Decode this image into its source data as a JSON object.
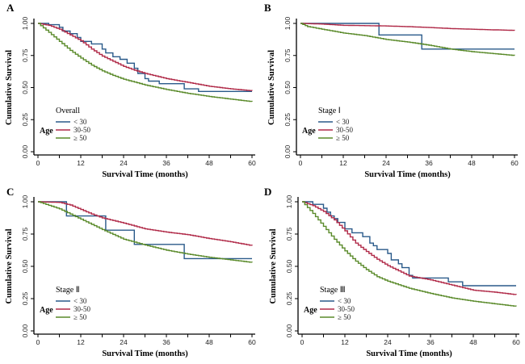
{
  "figure": {
    "colors": {
      "lt30": "#2a5a8a",
      "30_50": "#b02a48",
      "ge50": "#5a8a2a"
    }
  },
  "chart_data": [
    {
      "type": "line",
      "panel_label": "A",
      "subtitle": "Overall",
      "xlabel": "Survival Time (months)",
      "ylabel": "Cumulative Survival",
      "xlim": [
        0,
        60
      ],
      "ylim": [
        0,
        1
      ],
      "xticks": [
        "0",
        "12",
        "24",
        "36",
        "48",
        "60"
      ],
      "yticks": [
        "0.00",
        "0.25",
        "0.50",
        "0.75",
        "1.00"
      ],
      "grid": false,
      "legend": {
        "title": "Age",
        "placement": "bottom-left",
        "entries": [
          "< 30",
          "30-50",
          "≥ 50"
        ]
      },
      "series": [
        {
          "name": "< 30",
          "color_key": "lt30",
          "step": true,
          "points": [
            [
              0,
              1.0
            ],
            [
              3,
              1.0
            ],
            [
              3,
              0.99
            ],
            [
              6,
              0.99
            ],
            [
              6,
              0.97
            ],
            [
              7,
              0.97
            ],
            [
              7,
              0.94
            ],
            [
              9,
              0.94
            ],
            [
              9,
              0.92
            ],
            [
              11,
              0.92
            ],
            [
              11,
              0.89
            ],
            [
              12,
              0.89
            ],
            [
              12,
              0.86
            ],
            [
              15,
              0.86
            ],
            [
              15,
              0.84
            ],
            [
              18,
              0.84
            ],
            [
              18,
              0.8
            ],
            [
              19,
              0.8
            ],
            [
              19,
              0.77
            ],
            [
              21,
              0.77
            ],
            [
              21,
              0.74
            ],
            [
              23,
              0.74
            ],
            [
              23,
              0.72
            ],
            [
              25,
              0.72
            ],
            [
              25,
              0.69
            ],
            [
              27,
              0.69
            ],
            [
              27,
              0.65
            ],
            [
              28,
              0.65
            ],
            [
              28,
              0.61
            ],
            [
              30,
              0.61
            ],
            [
              30,
              0.57
            ],
            [
              31,
              0.57
            ],
            [
              31,
              0.55
            ],
            [
              34,
              0.55
            ],
            [
              34,
              0.53
            ],
            [
              41,
              0.53
            ],
            [
              41,
              0.49
            ],
            [
              45,
              0.49
            ],
            [
              45,
              0.47
            ],
            [
              60,
              0.47
            ]
          ]
        },
        {
          "name": "30-50",
          "color_key": "30_50",
          "step": false,
          "points": [
            [
              0,
              1.0
            ],
            [
              3,
              0.985
            ],
            [
              6,
              0.955
            ],
            [
              9,
              0.91
            ],
            [
              12,
              0.865
            ],
            [
              15,
              0.8
            ],
            [
              18,
              0.745
            ],
            [
              21,
              0.705
            ],
            [
              24,
              0.665
            ],
            [
              27,
              0.635
            ],
            [
              30,
              0.61
            ],
            [
              36,
              0.57
            ],
            [
              42,
              0.54
            ],
            [
              48,
              0.51
            ],
            [
              54,
              0.49
            ],
            [
              60,
              0.475
            ]
          ]
        },
        {
          "name": "≥ 50",
          "color_key": "ge50",
          "step": false,
          "points": [
            [
              0,
              1.0
            ],
            [
              3,
              0.93
            ],
            [
              6,
              0.86
            ],
            [
              9,
              0.79
            ],
            [
              12,
              0.73
            ],
            [
              15,
              0.675
            ],
            [
              18,
              0.63
            ],
            [
              21,
              0.595
            ],
            [
              24,
              0.565
            ],
            [
              30,
              0.52
            ],
            [
              36,
              0.485
            ],
            [
              42,
              0.455
            ],
            [
              48,
              0.43
            ],
            [
              54,
              0.41
            ],
            [
              60,
              0.39
            ]
          ]
        }
      ]
    },
    {
      "type": "line",
      "panel_label": "B",
      "subtitle": "Stage Ⅰ",
      "xlabel": "Survival Time (months)",
      "ylabel": "Cumulative Survival",
      "xlim": [
        0,
        60
      ],
      "ylim": [
        0,
        1
      ],
      "xticks": [
        "0",
        "12",
        "24",
        "36",
        "48",
        "60"
      ],
      "yticks": [
        "0.00",
        "0.25",
        "0.50",
        "0.75",
        "1.00"
      ],
      "grid": false,
      "legend": {
        "title": "Age",
        "placement": "bottom-left",
        "entries": [
          "< 30",
          "30-50",
          "≥ 50"
        ]
      },
      "series": [
        {
          "name": "< 30",
          "color_key": "lt30",
          "step": true,
          "points": [
            [
              0,
              1.0
            ],
            [
              22,
              1.0
            ],
            [
              22,
              0.91
            ],
            [
              34,
              0.91
            ],
            [
              34,
              0.8
            ],
            [
              60,
              0.8
            ]
          ]
        },
        {
          "name": "30-50",
          "color_key": "30_50",
          "step": false,
          "points": [
            [
              0,
              1.0
            ],
            [
              6,
              0.995
            ],
            [
              12,
              0.985
            ],
            [
              24,
              0.98
            ],
            [
              30,
              0.975
            ],
            [
              36,
              0.968
            ],
            [
              42,
              0.96
            ],
            [
              48,
              0.955
            ],
            [
              54,
              0.95
            ],
            [
              60,
              0.945
            ]
          ]
        },
        {
          "name": "≥ 50",
          "color_key": "ge50",
          "step": false,
          "points": [
            [
              0,
              1.0
            ],
            [
              2,
              0.975
            ],
            [
              6,
              0.955
            ],
            [
              12,
              0.925
            ],
            [
              18,
              0.905
            ],
            [
              24,
              0.875
            ],
            [
              30,
              0.855
            ],
            [
              36,
              0.83
            ],
            [
              42,
              0.8
            ],
            [
              48,
              0.78
            ],
            [
              54,
              0.765
            ],
            [
              60,
              0.75
            ]
          ]
        }
      ]
    },
    {
      "type": "line",
      "panel_label": "C",
      "subtitle": "Stage Ⅱ",
      "xlabel": "Survival Time (months)",
      "ylabel": "Cumulative Survival",
      "xlim": [
        0,
        60
      ],
      "ylim": [
        0,
        1
      ],
      "xticks": [
        "0",
        "12",
        "24",
        "36",
        "48",
        "60"
      ],
      "yticks": [
        "0.00",
        "0.25",
        "0.50",
        "0.75",
        "1.00"
      ],
      "grid": false,
      "legend": {
        "title": "Age",
        "placement": "bottom-left",
        "entries": [
          "< 30",
          "30-50",
          "≥ 50"
        ]
      },
      "series": [
        {
          "name": "< 30",
          "color_key": "lt30",
          "step": true,
          "points": [
            [
              0,
              1.0
            ],
            [
              8,
              1.0
            ],
            [
              8,
              0.89
            ],
            [
              19,
              0.89
            ],
            [
              19,
              0.78
            ],
            [
              27,
              0.78
            ],
            [
              27,
              0.67
            ],
            [
              41,
              0.67
            ],
            [
              41,
              0.56
            ],
            [
              60,
              0.56
            ]
          ]
        },
        {
          "name": "30-50",
          "color_key": "30_50",
          "step": false,
          "points": [
            [
              0,
              1.0
            ],
            [
              6,
              0.995
            ],
            [
              9,
              0.975
            ],
            [
              12,
              0.94
            ],
            [
              15,
              0.905
            ],
            [
              18,
              0.875
            ],
            [
              24,
              0.835
            ],
            [
              30,
              0.79
            ],
            [
              36,
              0.765
            ],
            [
              42,
              0.745
            ],
            [
              48,
              0.715
            ],
            [
              54,
              0.69
            ],
            [
              60,
              0.66
            ]
          ]
        },
        {
          "name": "≥ 50",
          "color_key": "ge50",
          "step": false,
          "points": [
            [
              0,
              1.0
            ],
            [
              6,
              0.945
            ],
            [
              12,
              0.865
            ],
            [
              18,
              0.785
            ],
            [
              24,
              0.71
            ],
            [
              30,
              0.665
            ],
            [
              36,
              0.625
            ],
            [
              42,
              0.595
            ],
            [
              48,
              0.57
            ],
            [
              54,
              0.55
            ],
            [
              60,
              0.53
            ]
          ]
        }
      ]
    },
    {
      "type": "line",
      "panel_label": "D",
      "subtitle": "Stage Ⅲ",
      "xlabel": "Survival Time (months)",
      "ylabel": "Cumulative Survival",
      "xlim": [
        0,
        60
      ],
      "ylim": [
        0,
        1
      ],
      "xticks": [
        "0",
        "12",
        "24",
        "36",
        "48",
        "60"
      ],
      "yticks": [
        "0.00",
        "0.25",
        "0.50",
        "0.75",
        "1.00"
      ],
      "grid": false,
      "legend": {
        "title": "Age",
        "placement": "bottom-left",
        "entries": [
          "< 30",
          "30-50",
          "≥ 50"
        ]
      },
      "series": [
        {
          "name": "< 30",
          "color_key": "lt30",
          "step": true,
          "points": [
            [
              0,
              1.0
            ],
            [
              3,
              1.0
            ],
            [
              3,
              0.98
            ],
            [
              6,
              0.98
            ],
            [
              6,
              0.95
            ],
            [
              7,
              0.95
            ],
            [
              7,
              0.92
            ],
            [
              8,
              0.92
            ],
            [
              8,
              0.89
            ],
            [
              9,
              0.89
            ],
            [
              9,
              0.87
            ],
            [
              10,
              0.87
            ],
            [
              10,
              0.84
            ],
            [
              12,
              0.84
            ],
            [
              12,
              0.79
            ],
            [
              14,
              0.79
            ],
            [
              14,
              0.76
            ],
            [
              17,
              0.76
            ],
            [
              17,
              0.73
            ],
            [
              19,
              0.73
            ],
            [
              19,
              0.68
            ],
            [
              20,
              0.68
            ],
            [
              20,
              0.66
            ],
            [
              21,
              0.66
            ],
            [
              21,
              0.63
            ],
            [
              24,
              0.63
            ],
            [
              24,
              0.6
            ],
            [
              25,
              0.6
            ],
            [
              25,
              0.55
            ],
            [
              27,
              0.55
            ],
            [
              27,
              0.52
            ],
            [
              28,
              0.52
            ],
            [
              28,
              0.49
            ],
            [
              30,
              0.49
            ],
            [
              30,
              0.43
            ],
            [
              31,
              0.43
            ],
            [
              31,
              0.41
            ],
            [
              41,
              0.41
            ],
            [
              41,
              0.38
            ],
            [
              45,
              0.38
            ],
            [
              45,
              0.35
            ],
            [
              60,
              0.35
            ]
          ]
        },
        {
          "name": "30-50",
          "color_key": "30_50",
          "step": false,
          "points": [
            [
              0,
              1.0
            ],
            [
              3,
              0.97
            ],
            [
              6,
              0.925
            ],
            [
              9,
              0.86
            ],
            [
              12,
              0.775
            ],
            [
              15,
              0.68
            ],
            [
              18,
              0.615
            ],
            [
              21,
              0.555
            ],
            [
              24,
              0.505
            ],
            [
              27,
              0.465
            ],
            [
              30,
              0.425
            ],
            [
              33,
              0.41
            ],
            [
              36,
              0.395
            ],
            [
              42,
              0.355
            ],
            [
              48,
              0.315
            ],
            [
              54,
              0.3
            ],
            [
              60,
              0.28
            ]
          ]
        },
        {
          "name": "≥ 50",
          "color_key": "ge50",
          "step": false,
          "points": [
            [
              0,
              1.0
            ],
            [
              3,
              0.91
            ],
            [
              6,
              0.81
            ],
            [
              9,
              0.71
            ],
            [
              12,
              0.62
            ],
            [
              15,
              0.54
            ],
            [
              18,
              0.475
            ],
            [
              21,
              0.42
            ],
            [
              24,
              0.385
            ],
            [
              30,
              0.33
            ],
            [
              36,
              0.29
            ],
            [
              42,
              0.255
            ],
            [
              48,
              0.23
            ],
            [
              54,
              0.21
            ],
            [
              60,
              0.19
            ]
          ]
        }
      ]
    }
  ]
}
